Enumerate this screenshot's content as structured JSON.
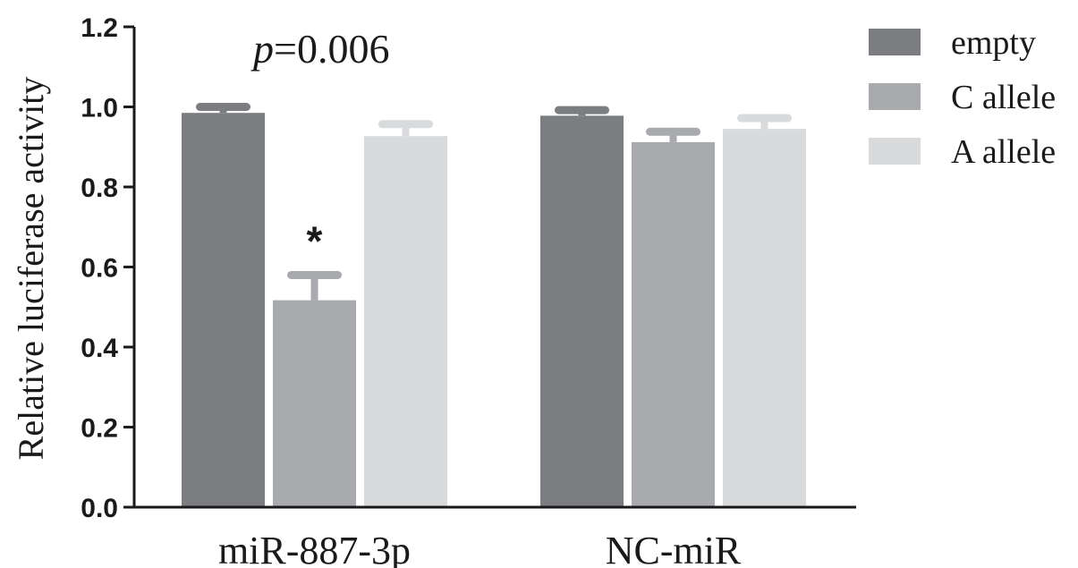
{
  "chart_data": {
    "type": "bar",
    "categories": [
      "miR-887-3p",
      "NC-miR"
    ],
    "series": [
      {
        "name": "empty",
        "values": [
          0.985,
          0.978
        ],
        "errors": [
          0.015,
          0.014
        ],
        "color": "#7c7d81"
      },
      {
        "name": "C allele",
        "values": [
          0.517,
          0.912
        ],
        "errors": [
          0.063,
          0.026
        ],
        "color": "#a9aaae"
      },
      {
        "name": "A allele",
        "values": [
          0.927,
          0.945
        ],
        "errors": [
          0.03,
          0.027
        ],
        "color": "#d9dadc"
      }
    ],
    "ylabel": "Relative luciferase activity",
    "xlabel": "",
    "ylim": [
      0,
      1.2
    ],
    "yticks": [
      "0.0",
      "0.2",
      "0.4",
      "0.6",
      "0.8",
      "1.0",
      "1.2"
    ],
    "annotation": {
      "italic_part": "p",
      "rest": "=0.006"
    },
    "significance_marker": "*",
    "legend_position": "top-right",
    "grid": false
  }
}
